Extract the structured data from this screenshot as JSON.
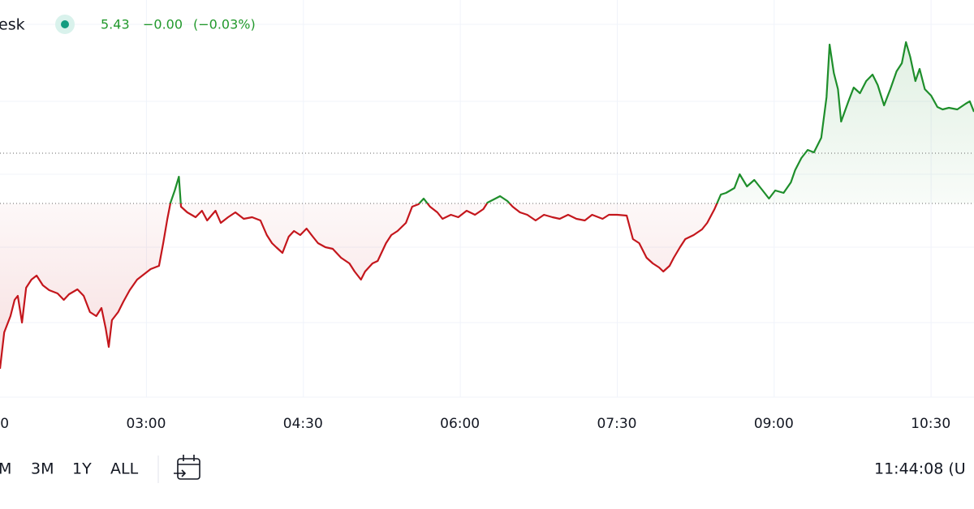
{
  "header": {
    "title": "esk",
    "value": "5.43",
    "change": "−0.00",
    "change_percent": "(−0.03%)"
  },
  "chart_data": {
    "type": "line",
    "x": [
      1.6,
      1.64,
      1.7,
      1.74,
      1.77,
      1.81,
      1.85,
      1.9,
      1.95,
      2.01,
      2.07,
      2.15,
      2.21,
      2.26,
      2.34,
      2.4,
      2.46,
      2.52,
      2.57,
      2.61,
      2.64,
      2.67,
      2.73,
      2.78,
      2.84,
      2.91,
      2.98,
      3.04,
      3.12,
      3.16,
      3.2,
      3.23,
      3.27,
      3.31,
      3.33,
      3.39,
      3.47,
      3.53,
      3.58,
      3.66,
      3.71,
      3.78,
      3.85,
      3.93,
      4.01,
      4.09,
      4.15,
      4.2,
      4.24,
      4.3,
      4.36,
      4.41,
      4.47,
      4.53,
      4.59,
      4.64,
      4.71,
      4.78,
      4.86,
      4.94,
      4.99,
      5.05,
      5.09,
      5.16,
      5.21,
      5.29,
      5.34,
      5.4,
      5.48,
      5.54,
      5.6,
      5.65,
      5.71,
      5.78,
      5.83,
      5.91,
      5.98,
      6.06,
      6.14,
      6.22,
      6.26,
      6.32,
      6.38,
      6.45,
      6.5,
      6.57,
      6.64,
      6.72,
      6.8,
      6.88,
      6.95,
      7.03,
      7.11,
      7.19,
      7.26,
      7.36,
      7.42,
      7.5,
      7.59,
      7.65,
      7.71,
      7.78,
      7.84,
      7.9,
      7.94,
      8.0,
      8.04,
      8.1,
      8.15,
      8.23,
      8.31,
      8.36,
      8.43,
      8.49,
      8.54,
      8.62,
      8.67,
      8.74,
      8.81,
      8.89,
      8.95,
      9.01,
      9.09,
      9.16,
      9.2,
      9.26,
      9.32,
      9.38,
      9.45,
      9.5,
      9.53,
      9.57,
      9.61,
      9.64,
      9.71,
      9.76,
      9.82,
      9.88,
      9.94,
      9.99,
      10.05,
      10.11,
      10.17,
      10.22,
      10.26,
      10.3,
      10.35,
      10.39,
      10.44,
      10.5,
      10.56,
      10.61,
      10.67,
      10.75,
      10.83,
      10.87,
      10.91
    ],
    "values": [
      35,
      80,
      100,
      120,
      125,
      92,
      135,
      145,
      150,
      138,
      132,
      128,
      120,
      127,
      133,
      125,
      105,
      100,
      110,
      85,
      62,
      95,
      105,
      118,
      132,
      145,
      152,
      158,
      162,
      190,
      220,
      240,
      255,
      272,
      235,
      228,
      222,
      230,
      218,
      230,
      215,
      222,
      228,
      220,
      222,
      218,
      200,
      190,
      185,
      178,
      198,
      205,
      200,
      208,
      198,
      190,
      185,
      183,
      172,
      165,
      155,
      145,
      155,
      165,
      168,
      190,
      200,
      205,
      215,
      235,
      238,
      245,
      235,
      228,
      220,
      225,
      222,
      230,
      225,
      232,
      240,
      244,
      248,
      242,
      235,
      228,
      225,
      218,
      225,
      222,
      220,
      225,
      220,
      218,
      225,
      220,
      225,
      225,
      224,
      195,
      190,
      172,
      165,
      160,
      155,
      162,
      172,
      185,
      195,
      200,
      207,
      215,
      232,
      250,
      252,
      258,
      275,
      260,
      268,
      255,
      245,
      255,
      252,
      265,
      280,
      295,
      305,
      302,
      320,
      370,
      435,
      400,
      380,
      340,
      365,
      382,
      375,
      390,
      398,
      385,
      360,
      380,
      402,
      412,
      438,
      420,
      390,
      405,
      380,
      372,
      358,
      355,
      357,
      355,
      362,
      365,
      352
    ],
    "xlim": [
      1.6,
      10.91
    ],
    "ylim": [
      0,
      490
    ],
    "xticks": [
      {
        "value": 1.5,
        "label": "0"
      },
      {
        "value": 3,
        "label": "03:00"
      },
      {
        "value": 4.5,
        "label": "04:30"
      },
      {
        "value": 6,
        "label": "06:00"
      },
      {
        "value": 7.5,
        "label": "07:30"
      },
      {
        "value": 9,
        "label": "09:00"
      },
      {
        "value": 10.5,
        "label": "10:30"
      }
    ],
    "ygrid": [
      0,
      92,
      185,
      275,
      365,
      460
    ],
    "baseline": 239,
    "reference_line": 301,
    "up_color": "#1e8e2b",
    "down_color": "#c4161c",
    "grid": true
  },
  "toolbar": {
    "ranges": [
      "M",
      "3M",
      "1Y",
      "ALL"
    ],
    "time": "11:44:08 (U"
  }
}
